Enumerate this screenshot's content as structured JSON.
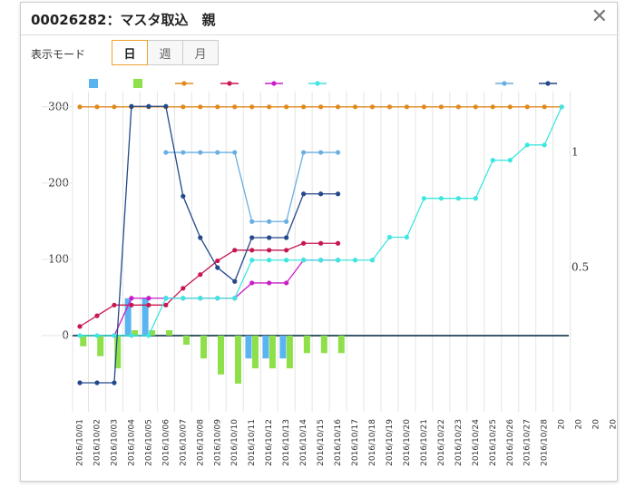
{
  "header": {
    "title": "00026282：マスタ取込　親"
  },
  "mode": {
    "label": "表示モード",
    "tabs": [
      "日",
      "週",
      "月"
    ],
    "selected": 0
  },
  "chart_data": {
    "type": "combo",
    "categories": [
      "2016/10/01",
      "2016/10/02",
      "2016/10/03",
      "2016/10/04",
      "2016/10/05",
      "2016/10/06",
      "2016/10/07",
      "2016/10/08",
      "2016/10/09",
      "2016/10/10",
      "2016/10/11",
      "2016/10/12",
      "2016/10/13",
      "2016/10/14",
      "2016/10/15",
      "2016/10/16",
      "2016/10/17",
      "2016/10/18",
      "2016/10/19",
      "2016/10/20",
      "2016/10/21",
      "2016/10/22",
      "2016/10/23",
      "2016/10/24",
      "2016/10/25",
      "2016/10/26",
      "2016/10/27",
      "2016/10/28",
      "20",
      "20",
      "20",
      "20"
    ],
    "ylim": [
      -100,
      320
    ],
    "yticks": [
      0,
      100,
      200,
      300
    ],
    "y2lim": [
      -0.126,
      1.264
    ],
    "y2ticks": [
      0.5,
      1
    ],
    "series": [
      {
        "type": "bar",
        "color": "#5ab4f0",
        "values": [
          null,
          null,
          null,
          49,
          49,
          null,
          null,
          null,
          null,
          null,
          -30,
          -30,
          -30,
          null,
          null,
          null,
          null,
          null,
          null,
          null,
          null,
          null,
          null,
          null,
          null,
          null,
          null,
          null,
          null,
          null,
          null,
          null
        ]
      },
      {
        "type": "bar",
        "color": "#8ee04a",
        "values": [
          -14,
          -27,
          -43,
          7,
          7,
          7,
          -12,
          -30,
          -51,
          -63,
          -43,
          -43,
          -43,
          -23,
          -23,
          -23,
          null,
          null,
          null,
          null,
          null,
          null,
          null,
          null,
          null,
          null,
          null,
          null,
          null,
          null,
          null,
          null
        ]
      },
      {
        "type": "line",
        "color": "#e0891e",
        "values": [
          300,
          300,
          300,
          300,
          300,
          300,
          300,
          300,
          300,
          300,
          300,
          300,
          300,
          300,
          300,
          300,
          300,
          300,
          300,
          300,
          300,
          300,
          300,
          300,
          300,
          300,
          300,
          300,
          300,
          null,
          null,
          null
        ]
      },
      {
        "type": "line",
        "color": "#c8174f",
        "values": [
          12,
          26,
          40,
          40,
          40,
          40,
          62,
          80,
          98,
          112,
          112,
          112,
          112,
          121,
          121,
          121,
          null,
          null,
          null,
          null,
          null,
          null,
          null,
          null,
          null,
          null,
          null,
          null,
          null,
          null,
          null,
          null
        ]
      },
      {
        "type": "line",
        "color": "#c81ec8",
        "values": [
          null,
          null,
          0,
          49,
          49,
          49,
          49,
          49,
          49,
          49,
          69,
          69,
          69,
          99,
          99,
          99,
          null,
          null,
          null,
          null,
          null,
          null,
          null,
          null,
          null,
          null,
          null,
          null,
          null,
          null,
          null,
          null
        ]
      },
      {
        "type": "line",
        "color": "#3ee6e0",
        "values": [
          0,
          0,
          0,
          0,
          0,
          49,
          49,
          49,
          49,
          49,
          99,
          99,
          99,
          99,
          99,
          99,
          99,
          99,
          129,
          129,
          180,
          180,
          180,
          180,
          230,
          230,
          250,
          250,
          300,
          null,
          null,
          null
        ]
      },
      {
        "type": "line",
        "axis": "y2",
        "color": "#6aaee0",
        "values": [
          null,
          null,
          null,
          null,
          null,
          1,
          1,
          1,
          1,
          1,
          0.7,
          0.7,
          0.7,
          1,
          1,
          1,
          null,
          null,
          null,
          null,
          null,
          null,
          null,
          null,
          null,
          null,
          null,
          null,
          null,
          null,
          null,
          null
        ]
      },
      {
        "type": "line",
        "axis": "y2",
        "color": "#24498a",
        "values": [
          0,
          0,
          0,
          1.2,
          1.2,
          1.2,
          0.81,
          0.63,
          0.5,
          0.44,
          0.63,
          0.63,
          0.63,
          0.82,
          0.82,
          0.82,
          null,
          null,
          null,
          null,
          null,
          null,
          null,
          null,
          null,
          null,
          null,
          null,
          null,
          null,
          null,
          null
        ]
      }
    ]
  }
}
